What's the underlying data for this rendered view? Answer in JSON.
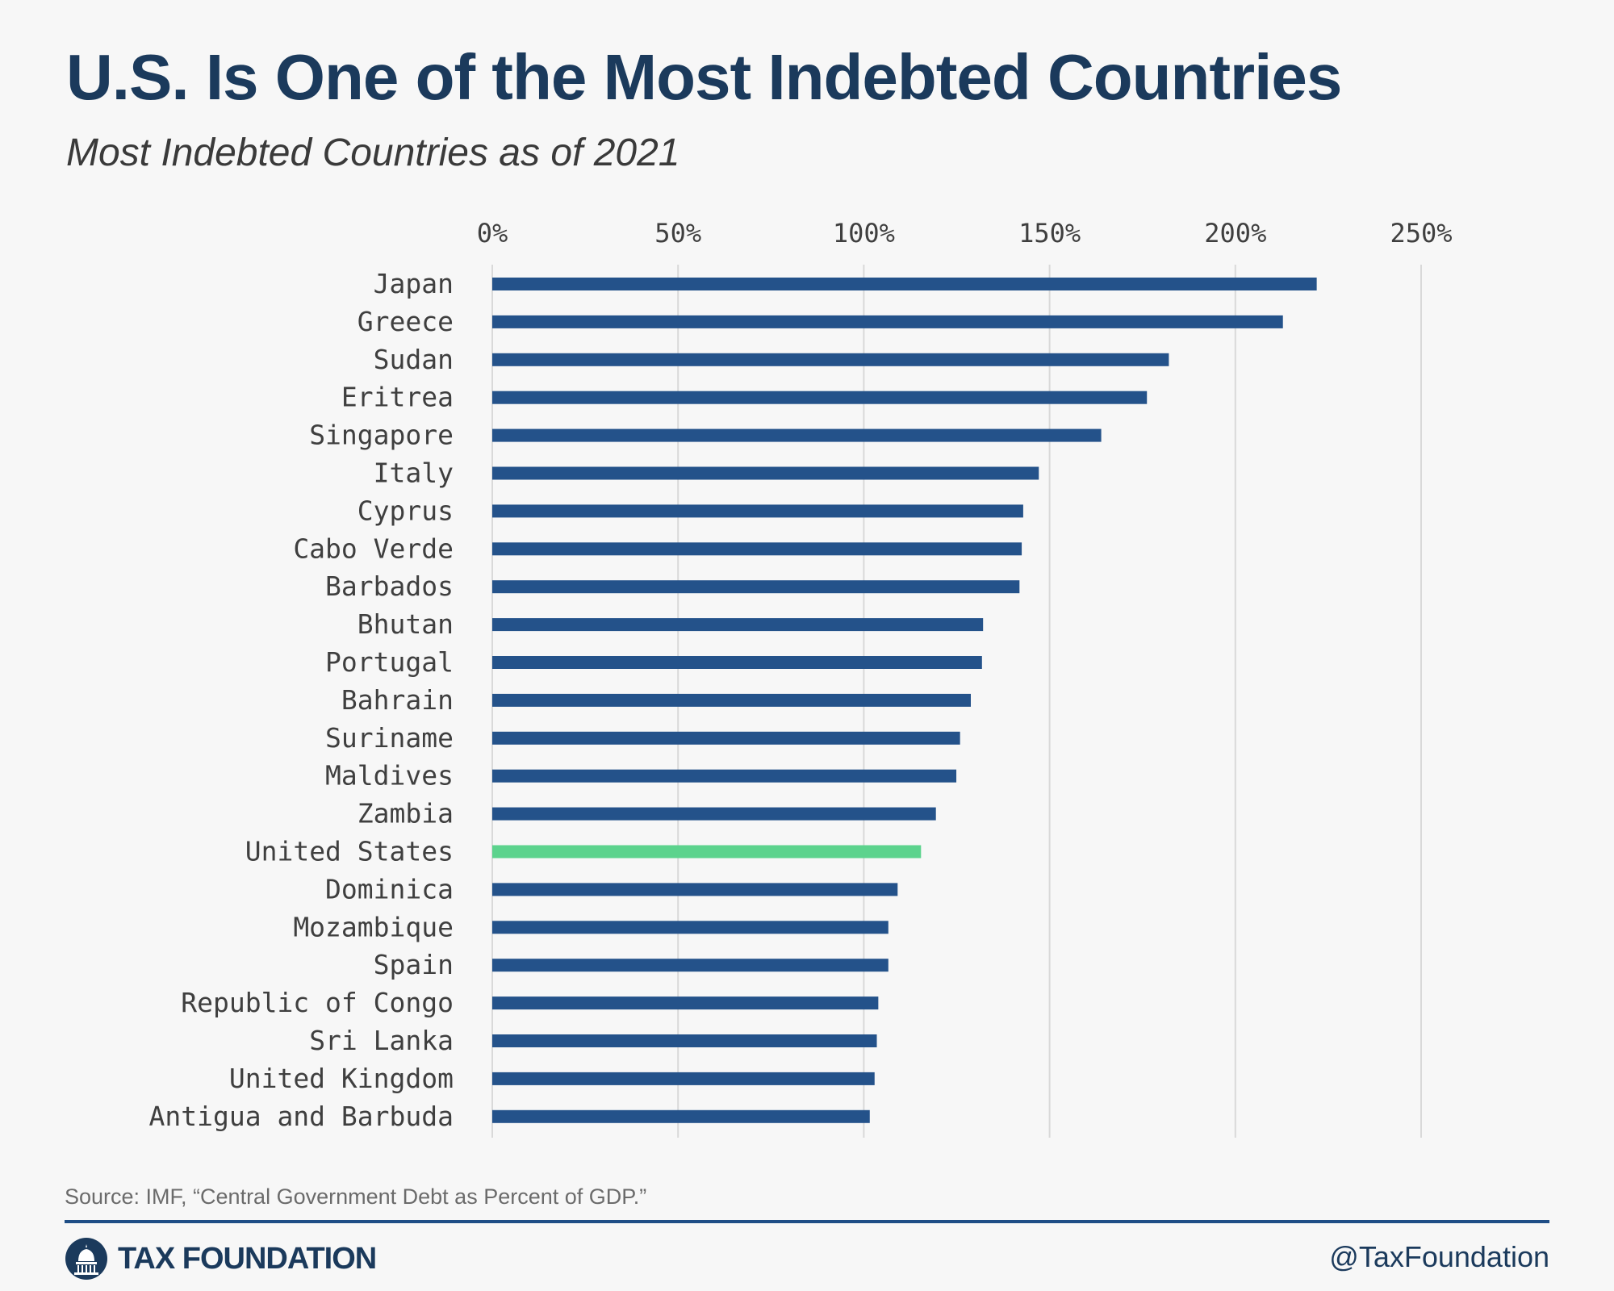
{
  "header": {
    "title": "U.S. Is One of the Most Indebted Countries",
    "subtitle": "Most Indebted Countries as of 2021"
  },
  "chart_data": {
    "type": "bar",
    "orientation": "horizontal",
    "title": "U.S. Is One of the Most Indebted Countries",
    "subtitle": "Most Indebted Countries as of 2021",
    "xlabel": "",
    "ylabel": "",
    "xlim": [
      0,
      250
    ],
    "ticks": [
      "0%",
      "50%",
      "100%",
      "150%",
      "200%",
      "250%"
    ],
    "tick_values": [
      0,
      50,
      100,
      150,
      200,
      250
    ],
    "grid": true,
    "categories": [
      "Japan",
      "Greece",
      "Sudan",
      "Eritrea",
      "Singapore",
      "Italy",
      "Cyprus",
      "Cabo Verde",
      "Barbados",
      "Bhutan",
      "Portugal",
      "Bahrain",
      "Suriname",
      "Maldives",
      "Zambia",
      "United States",
      "Dominica",
      "Mozambique",
      "Spain",
      "Republic of Congo",
      "Sri Lanka",
      "United Kingdom",
      "Antigua and Barbuda"
    ],
    "values": [
      221.9,
      212.8,
      182.1,
      176.2,
      163.9,
      147.1,
      142.9,
      142.5,
      141.9,
      132.1,
      131.8,
      128.8,
      125.9,
      124.9,
      119.4,
      115.4,
      109.1,
      106.6,
      106.6,
      103.9,
      103.5,
      102.9,
      101.6
    ],
    "colors": {
      "default": "#24528a",
      "highlight": "#5cd38d",
      "grid": "#d9d9d9"
    },
    "highlight_category": "United States"
  },
  "footer": {
    "source": "Source: IMF, “Central Government Debt as Percent of GDP.”",
    "brand": "TAX FOUNDATION",
    "handle": "@TaxFoundation",
    "brand_color": "#1b3a5c",
    "rule_color": "#1f4e86"
  }
}
